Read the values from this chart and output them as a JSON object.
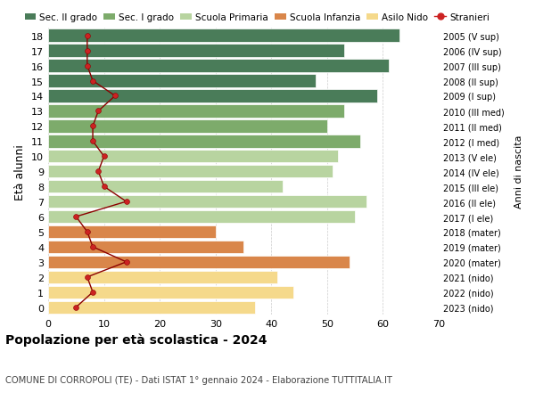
{
  "ages": [
    18,
    17,
    16,
    15,
    14,
    13,
    12,
    11,
    10,
    9,
    8,
    7,
    6,
    5,
    4,
    3,
    2,
    1,
    0
  ],
  "bar_values": [
    63,
    53,
    61,
    48,
    59,
    53,
    50,
    56,
    52,
    51,
    42,
    57,
    55,
    30,
    35,
    54,
    41,
    44,
    37
  ],
  "bar_colors": [
    "#4a7c59",
    "#4a7c59",
    "#4a7c59",
    "#4a7c59",
    "#4a7c59",
    "#7dab6b",
    "#7dab6b",
    "#7dab6b",
    "#b8d4a0",
    "#b8d4a0",
    "#b8d4a0",
    "#b8d4a0",
    "#b8d4a0",
    "#d9864a",
    "#d9864a",
    "#d9864a",
    "#f5d98b",
    "#f5d98b",
    "#f5d98b"
  ],
  "stranieri_values": [
    7,
    7,
    7,
    8,
    12,
    9,
    8,
    8,
    10,
    9,
    10,
    14,
    5,
    7,
    8,
    14,
    7,
    8,
    5
  ],
  "right_labels": [
    "2005 (V sup)",
    "2006 (IV sup)",
    "2007 (III sup)",
    "2008 (II sup)",
    "2009 (I sup)",
    "2010 (III med)",
    "2011 (II med)",
    "2012 (I med)",
    "2013 (V ele)",
    "2014 (IV ele)",
    "2015 (III ele)",
    "2016 (II ele)",
    "2017 (I ele)",
    "2018 (mater)",
    "2019 (mater)",
    "2020 (mater)",
    "2021 (nido)",
    "2022 (nido)",
    "2023 (nido)"
  ],
  "legend_labels": [
    "Sec. II grado",
    "Sec. I grado",
    "Scuola Primaria",
    "Scuola Infanzia",
    "Asilo Nido",
    "Stranieri"
  ],
  "legend_colors": [
    "#4a7c59",
    "#7dab6b",
    "#b8d4a0",
    "#d9864a",
    "#f5d98b",
    "#cc2222"
  ],
  "ylabel_left": "Età alunni",
  "ylabel_right": "Anni di nascita",
  "title": "Popolazione per età scolastica - 2024",
  "subtitle": "COMUNE DI CORROPOLI (TE) - Dati ISTAT 1° gennaio 2024 - Elaborazione TUTTITALIA.IT",
  "xlim": [
    0,
    70
  ],
  "bar_height": 0.85,
  "background_color": "#ffffff",
  "grid_color": "#cccccc"
}
